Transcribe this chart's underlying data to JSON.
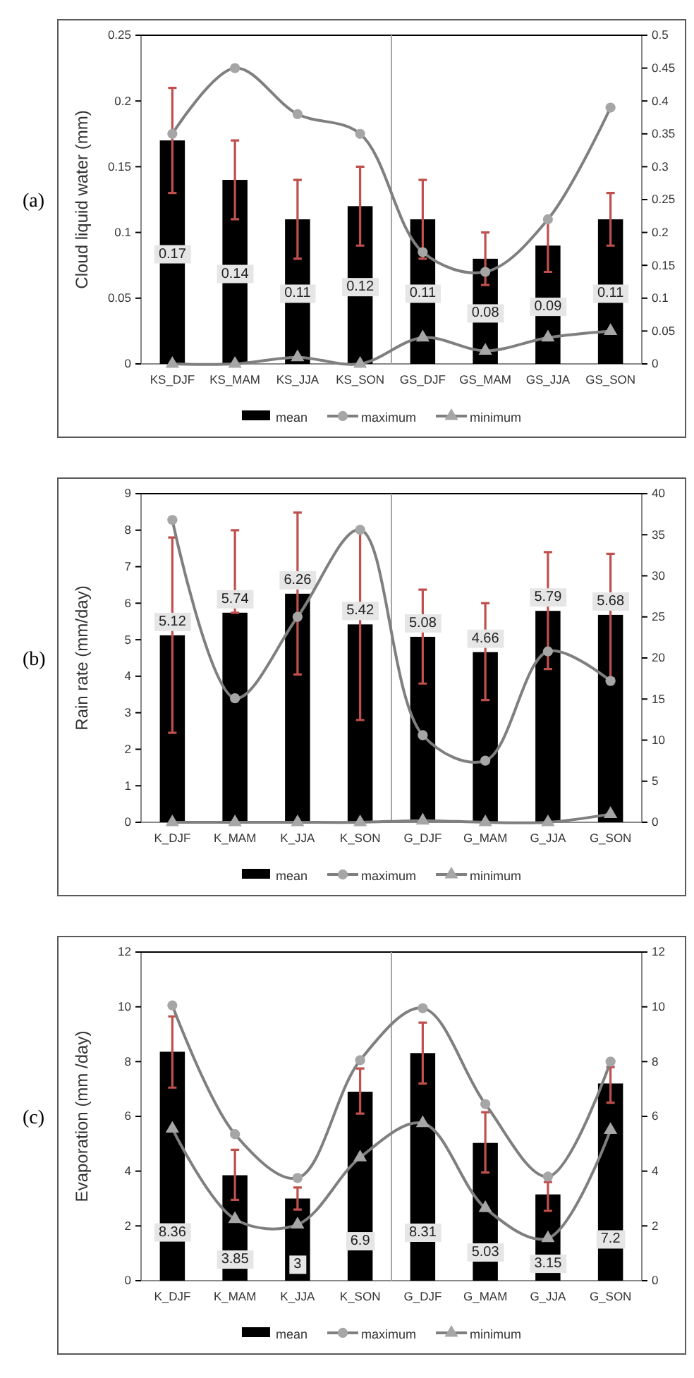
{
  "chart_data": [
    {
      "type": "bar",
      "title": "(a)",
      "ylabel": "Cloud liquid water  (mm)",
      "categories": [
        "KS_DJF",
        "KS_MAM",
        "KS_JJA",
        "KS_SON",
        "GS_DJF",
        "GS_MAM",
        "GS_JJA",
        "GS_SON"
      ],
      "ylim": [
        0,
        0.25
      ],
      "yticks": [
        0,
        0.05,
        0.1,
        0.15,
        0.2,
        0.25
      ],
      "y2lim": [
        0,
        0.5
      ],
      "y2ticks": [
        0,
        0.05,
        0.1,
        0.15,
        0.2,
        0.25,
        0.3,
        0.35,
        0.4,
        0.45,
        0.5
      ],
      "legend": "bottom",
      "grid": false,
      "series": [
        {
          "name": "mean",
          "color": "#000000",
          "value_labels": [
            "0.17",
            "0.14",
            "0.11",
            "0.12",
            "0.11",
            "0.08",
            "0.09",
            "0.11"
          ],
          "values": [
            0.17,
            0.14,
            0.11,
            0.12,
            0.11,
            0.08,
            0.09,
            0.11
          ],
          "errors": [
            [
              0.13,
              0.21
            ],
            [
              0.11,
              0.17
            ],
            [
              0.08,
              0.14
            ],
            [
              0.09,
              0.15
            ],
            [
              0.08,
              0.14
            ],
            [
              0.06,
              0.1
            ],
            [
              0.07,
              0.11
            ],
            [
              0.09,
              0.13
            ]
          ]
        },
        {
          "name": "maximum",
          "type": "line",
          "axis": "y2",
          "marker": "circle",
          "color": "#7f7f7f",
          "values": [
            0.35,
            0.45,
            0.38,
            0.35,
            0.17,
            0.14,
            0.22,
            0.39
          ]
        },
        {
          "name": "minimum",
          "type": "line",
          "axis": "y2",
          "marker": "triangle",
          "color": "#7f7f7f",
          "values": [
            0,
            0,
            0.01,
            0,
            0.04,
            0.02,
            0.04,
            0.05
          ]
        }
      ]
    },
    {
      "type": "bar",
      "title": "(b)",
      "ylabel": "Rain rate (mm/day)",
      "categories": [
        "K_DJF",
        "K_MAM",
        "K_JJA",
        "K_SON",
        "G_DJF",
        "G_MAM",
        "G_JJA",
        "G_SON"
      ],
      "ylim": [
        0,
        9
      ],
      "yticks": [
        0,
        1,
        2,
        3,
        4,
        5,
        6,
        7,
        8,
        9
      ],
      "y2lim": [
        0,
        40
      ],
      "y2ticks": [
        0,
        5,
        10,
        15,
        20,
        25,
        30,
        35,
        40
      ],
      "legend": "bottom",
      "grid": false,
      "series": [
        {
          "name": "mean",
          "color": "#000000",
          "value_labels": [
            "5.12",
            "5.74",
            "6.26",
            "5.42",
            "5.08",
            "4.66",
            "5.79",
            "5.68"
          ],
          "values": [
            5.12,
            5.74,
            6.26,
            5.42,
            5.08,
            4.66,
            5.79,
            5.68
          ],
          "errors": [
            [
              2.45,
              7.8
            ],
            [
              5.74,
              8.0
            ],
            [
              4.05,
              8.48
            ],
            [
              2.8,
              8.0
            ],
            [
              3.8,
              6.37
            ],
            [
              3.35,
              6.0
            ],
            [
              4.2,
              7.4
            ],
            [
              3.95,
              7.35
            ]
          ]
        },
        {
          "name": "maximum",
          "type": "line",
          "axis": "y2",
          "marker": "circle",
          "color": "#7f7f7f",
          "values": [
            36.8,
            15.1,
            25,
            35.6,
            10.6,
            7.5,
            20.8,
            17.2
          ]
        },
        {
          "name": "minimum",
          "type": "line",
          "axis": "y2",
          "marker": "triangle",
          "color": "#7f7f7f",
          "values": [
            0,
            0,
            0,
            0,
            0.2,
            0,
            0,
            1.0
          ]
        }
      ]
    },
    {
      "type": "bar",
      "title": "(c)",
      "ylabel": "Evaporation (mm /day)",
      "categories": [
        "K_DJF",
        "K_MAM",
        "K_JJA",
        "K_SON",
        "G_DJF",
        "G_MAM",
        "G_JJA",
        "G_SON"
      ],
      "ylim": [
        0,
        12
      ],
      "yticks": [
        0,
        2,
        4,
        6,
        8,
        10,
        12
      ],
      "y2lim": [
        0,
        12
      ],
      "y2ticks": [
        0,
        2,
        4,
        6,
        8,
        10,
        12
      ],
      "legend": "bottom",
      "grid": false,
      "series": [
        {
          "name": "mean",
          "color": "#000000",
          "value_labels": [
            "8.36",
            "3.85",
            "3",
            "6.9",
            "8.31",
            "5.03",
            "3.15",
            "7.2"
          ],
          "values": [
            8.36,
            3.85,
            3,
            6.9,
            8.31,
            5.03,
            3.15,
            7.2
          ],
          "errors": [
            [
              7.05,
              9.65
            ],
            [
              2.95,
              4.78
            ],
            [
              2.6,
              3.4
            ],
            [
              6.1,
              7.75
            ],
            [
              7.2,
              9.42
            ],
            [
              3.95,
              6.15
            ],
            [
              2.55,
              3.6
            ],
            [
              6.5,
              7.8
            ]
          ]
        },
        {
          "name": "maximum",
          "type": "line",
          "axis": "y2",
          "marker": "circle",
          "color": "#7f7f7f",
          "values": [
            10.05,
            5.35,
            3.75,
            8.05,
            9.95,
            6.45,
            3.8,
            8.0
          ]
        },
        {
          "name": "minimum",
          "type": "line",
          "axis": "y2",
          "marker": "triangle",
          "color": "#7f7f7f",
          "values": [
            5.55,
            2.25,
            2.05,
            4.5,
            5.75,
            2.65,
            1.55,
            5.5
          ]
        }
      ]
    }
  ]
}
